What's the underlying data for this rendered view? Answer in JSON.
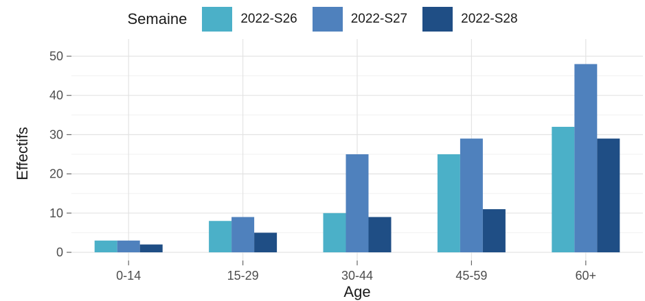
{
  "chart_data": {
    "type": "bar",
    "title": "",
    "xlabel": "Age",
    "ylabel": "Effectifs",
    "categories": [
      "0-14",
      "15-29",
      "30-44",
      "45-59",
      "60+"
    ],
    "legend_title": "Semaine",
    "legend_position": "top",
    "ylim": [
      0,
      50
    ],
    "yticks": [
      0,
      10,
      20,
      30,
      40,
      50
    ],
    "grid": true,
    "series": [
      {
        "name": "2022-S26",
        "color": "#4bb0c8",
        "values": [
          3,
          8,
          10,
          25,
          32
        ]
      },
      {
        "name": "2022-S27",
        "color": "#4f81bd",
        "values": [
          3,
          9,
          25,
          29,
          48
        ]
      },
      {
        "name": "2022-S28",
        "color": "#1f4e85",
        "values": [
          2,
          5,
          9,
          11,
          29
        ]
      }
    ]
  }
}
